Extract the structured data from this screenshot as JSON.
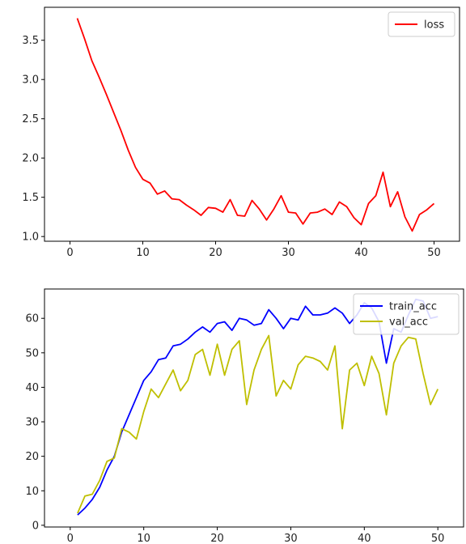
{
  "chart_data": [
    {
      "type": "line",
      "x": [
        1,
        2,
        3,
        4,
        5,
        6,
        7,
        8,
        9,
        10,
        11,
        12,
        13,
        14,
        15,
        16,
        17,
        18,
        19,
        20,
        21,
        22,
        23,
        24,
        25,
        26,
        27,
        28,
        29,
        30,
        31,
        32,
        33,
        34,
        35,
        36,
        37,
        38,
        39,
        40,
        41,
        42,
        43,
        44,
        45,
        46,
        47,
        48,
        49,
        50
      ],
      "series": [
        {
          "name": "loss",
          "color": "#ff0000",
          "values": [
            3.78,
            3.52,
            3.24,
            3.03,
            2.81,
            2.58,
            2.35,
            2.1,
            1.88,
            1.73,
            1.68,
            1.54,
            1.58,
            1.48,
            1.47,
            1.4,
            1.34,
            1.27,
            1.37,
            1.36,
            1.31,
            1.47,
            1.27,
            1.26,
            1.46,
            1.35,
            1.21,
            1.35,
            1.52,
            1.31,
            1.3,
            1.16,
            1.3,
            1.31,
            1.35,
            1.28,
            1.44,
            1.38,
            1.24,
            1.15,
            1.42,
            1.52,
            1.82,
            1.38,
            1.57,
            1.25,
            1.07,
            1.28,
            1.34,
            1.42
          ]
        }
      ],
      "xlim": [
        -3.5,
        53.5
      ],
      "ylim": [
        0.94,
        3.92
      ],
      "xticks": [
        0,
        10,
        20,
        30,
        40,
        50
      ],
      "yticks": [
        1.0,
        1.5,
        2.0,
        2.5,
        3.0,
        3.5
      ],
      "xtick_labels": [
        "0",
        "10",
        "20",
        "30",
        "40",
        "50"
      ],
      "ytick_labels": [
        "1.0",
        "1.5",
        "2.0",
        "2.5",
        "3.0",
        "3.5"
      ],
      "legend_loc": "upper right",
      "grid": false
    },
    {
      "type": "line",
      "x": [
        1,
        2,
        3,
        4,
        5,
        6,
        7,
        8,
        9,
        10,
        11,
        12,
        13,
        14,
        15,
        16,
        17,
        18,
        19,
        20,
        21,
        22,
        23,
        24,
        25,
        26,
        27,
        28,
        29,
        30,
        31,
        32,
        33,
        34,
        35,
        36,
        37,
        38,
        39,
        40,
        41,
        42,
        43,
        44,
        45,
        46,
        47,
        48,
        49,
        50
      ],
      "series": [
        {
          "name": "train_acc",
          "color": "#0000ff",
          "values": [
            3,
            5,
            7.5,
            11,
            16,
            20,
            27,
            32,
            37,
            42,
            44.5,
            48,
            48.5,
            52,
            52.5,
            54,
            56,
            57.5,
            56,
            58.5,
            59,
            56.5,
            60,
            59.5,
            58,
            58.5,
            62.5,
            60,
            57,
            60,
            59.5,
            63.5,
            61,
            61,
            61.5,
            63,
            61.5,
            58.5,
            61,
            64.5,
            63,
            59,
            47,
            57,
            56,
            61,
            65.5,
            65,
            60,
            60.5
          ]
        },
        {
          "name": "val_acc",
          "color": "#bfbf00",
          "values": [
            3.5,
            8.5,
            9,
            13,
            18.5,
            19.5,
            28,
            27,
            25,
            33,
            39.5,
            37,
            41,
            45,
            39,
            42,
            49.5,
            51,
            43.5,
            52.5,
            43.5,
            51,
            53.5,
            35,
            45,
            51,
            55,
            37.5,
            42,
            39.5,
            46.5,
            49,
            48.5,
            47.5,
            45,
            52,
            28,
            45,
            47,
            40.5,
            49,
            44,
            32,
            47,
            52,
            54.5,
            54,
            44,
            35,
            39.5
          ]
        }
      ],
      "xlim": [
        -3.5,
        53.5
      ],
      "ylim": [
        -0.5,
        68.5
      ],
      "xticks": [
        0,
        10,
        20,
        30,
        40,
        50
      ],
      "yticks": [
        0,
        10,
        20,
        30,
        40,
        50,
        60
      ],
      "xtick_labels": [
        "0",
        "10",
        "20",
        "30",
        "40",
        "50"
      ],
      "ytick_labels": [
        "0",
        "10",
        "20",
        "30",
        "40",
        "50",
        "60"
      ],
      "legend_loc": "upper right",
      "grid": false
    }
  ]
}
